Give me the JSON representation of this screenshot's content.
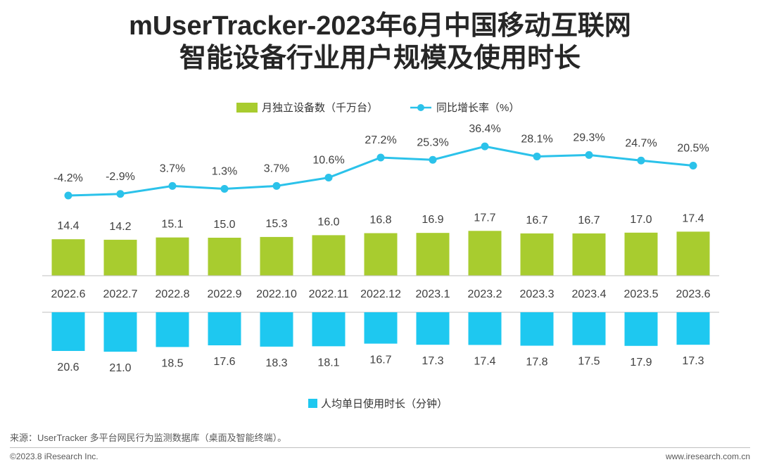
{
  "title": {
    "line1": "mUserTracker-2023年6月中国移动互联网",
    "line2": "智能设备行业用户规模及使用时长"
  },
  "chart_data": {
    "type": "bar",
    "categories": [
      "2022.6",
      "2022.7",
      "2022.8",
      "2022.9",
      "2022.10",
      "2022.11",
      "2022.12",
      "2023.1",
      "2023.2",
      "2023.3",
      "2023.4",
      "2023.5",
      "2023.6"
    ],
    "series": [
      {
        "name": "月独立设备数（千万台）",
        "type": "bar",
        "color": "#a8cc2f",
        "values": [
          14.4,
          14.2,
          15.1,
          15.0,
          15.3,
          16.0,
          16.8,
          16.9,
          17.7,
          16.7,
          16.7,
          17.0,
          17.4
        ],
        "labels": [
          "14.4",
          "14.2",
          "15.1",
          "15.0",
          "15.3",
          "16.0",
          "16.8",
          "16.9",
          "17.7",
          "16.7",
          "16.7",
          "17.0",
          "17.4"
        ]
      },
      {
        "name": "同比增长率（%）",
        "type": "line",
        "color": "#2bc2ea",
        "values": [
          -4.2,
          -2.9,
          3.7,
          1.3,
          3.7,
          10.6,
          27.2,
          25.3,
          36.4,
          28.1,
          29.3,
          24.7,
          20.5
        ],
        "labels": [
          "-4.2%",
          "-2.9%",
          "3.7%",
          "1.3%",
          "3.7%",
          "10.6%",
          "27.2%",
          "25.3%",
          "36.4%",
          "28.1%",
          "29.3%",
          "24.7%",
          "20.5%"
        ]
      },
      {
        "name": "人均单日使用时长（分钟）",
        "type": "bar-down",
        "color": "#1ec8f0",
        "values": [
          20.6,
          21.0,
          18.5,
          17.6,
          18.3,
          18.1,
          16.7,
          17.3,
          17.4,
          17.8,
          17.5,
          17.9,
          17.3
        ],
        "labels": [
          "20.6",
          "21.0",
          "18.5",
          "17.6",
          "18.3",
          "18.1",
          "16.7",
          "17.3",
          "17.4",
          "17.8",
          "17.5",
          "17.9",
          "17.3"
        ]
      }
    ]
  },
  "source": "来源：UserTracker 多平台网民行为监测数据库（桌面及智能终端）。",
  "footer": {
    "left": "©2023.8 iResearch Inc.",
    "right": "www.iresearch.com.cn"
  }
}
